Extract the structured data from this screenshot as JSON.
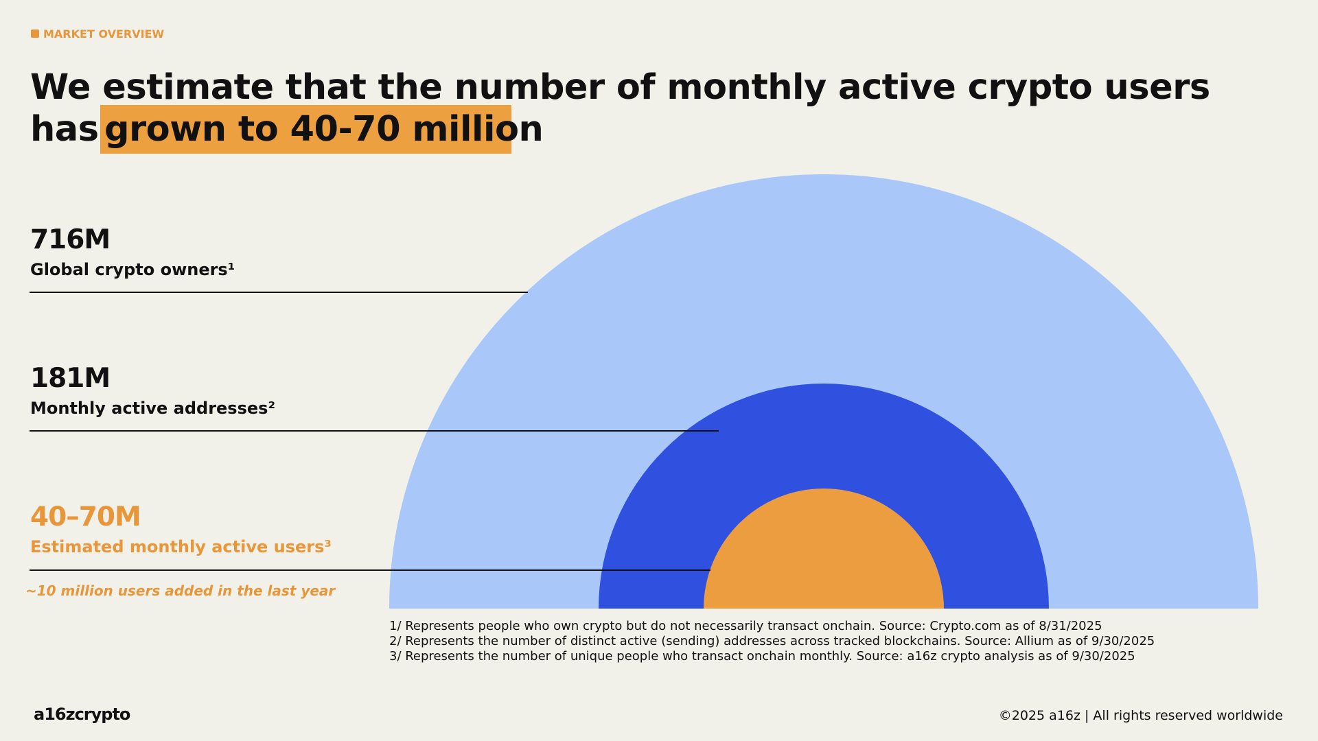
{
  "header": {
    "tag": "MARKET OVERVIEW",
    "title_line1": "We estimate that the number of monthly active crypto users",
    "title_prefix": "has",
    "title_highlight": "grown to 40-70 million"
  },
  "metrics": [
    {
      "value": "716M",
      "label": "Global crypto owners¹"
    },
    {
      "value": "181M",
      "label": "Monthly active addresses²"
    },
    {
      "value": "40–70M",
      "label": "Estimated monthly active users³"
    }
  ],
  "note": "~10 million users added in the last year",
  "footnotes": [
    "1/ Represents people who own crypto but do not necessarily transact onchain. Source: Crypto.com as of 8/31/2025",
    "2/ Represents the number of distinct active (sending) addresses across tracked blockchains. Source: Allium as of 9/30/2025",
    "3/ Represents the number of unique people who transact onchain monthly. Source: a16z crypto analysis as of 9/30/2025"
  ],
  "footer": {
    "logo": "a16zcrypto",
    "copyright": "©2025 a16z | All rights reserved worldwide"
  }
}
